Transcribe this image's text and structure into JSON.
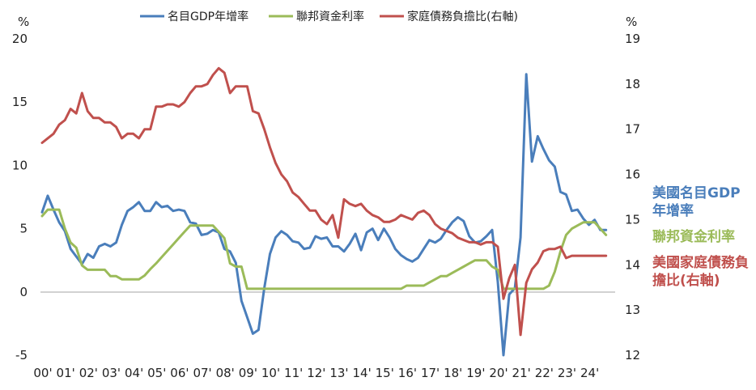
{
  "chart_data": {
    "type": "line",
    "left_axis": {
      "unit": "%",
      "min": -5,
      "max": 20,
      "ticks": [
        -5,
        0,
        5,
        10,
        15,
        20
      ]
    },
    "right_axis": {
      "unit": "%",
      "min": 12,
      "max": 19,
      "ticks": [
        12,
        13,
        14,
        15,
        16,
        17,
        18,
        19
      ]
    },
    "x_ticks": [
      "00'",
      "01'",
      "02'",
      "03'",
      "04'",
      "05'",
      "06'",
      "07'",
      "08'",
      "09'",
      "10'",
      "11'",
      "12'",
      "13'",
      "14'",
      "15'",
      "16'",
      "17'",
      "18'",
      "19'",
      "20'",
      "21'",
      "22'",
      "23'",
      "24'"
    ],
    "legend_position": "top",
    "grid": false,
    "series": [
      {
        "name": "名目GDP年增率",
        "side_label": "美國名目GDP年增率",
        "axis": "left",
        "color": "#4a7ebb",
        "x": [
          2000.0,
          2000.25,
          2000.5,
          2000.75,
          2001.0,
          2001.25,
          2001.5,
          2001.75,
          2002.0,
          2002.25,
          2002.5,
          2002.75,
          2003.0,
          2003.25,
          2003.5,
          2003.75,
          2004.0,
          2004.25,
          2004.5,
          2004.75,
          2005.0,
          2005.25,
          2005.5,
          2005.75,
          2006.0,
          2006.25,
          2006.5,
          2006.75,
          2007.0,
          2007.25,
          2007.5,
          2007.75,
          2008.0,
          2008.25,
          2008.5,
          2008.75,
          2009.0,
          2009.25,
          2009.5,
          2009.75,
          2010.0,
          2010.25,
          2010.5,
          2010.75,
          2011.0,
          2011.25,
          2011.5,
          2011.75,
          2012.0,
          2012.25,
          2012.5,
          2012.75,
          2013.0,
          2013.25,
          2013.5,
          2013.75,
          2014.0,
          2014.25,
          2014.5,
          2014.75,
          2015.0,
          2015.25,
          2015.5,
          2015.75,
          2016.0,
          2016.25,
          2016.5,
          2016.75,
          2017.0,
          2017.25,
          2017.5,
          2017.75,
          2018.0,
          2018.25,
          2018.5,
          2018.75,
          2019.0,
          2019.25,
          2019.5,
          2019.75,
          2020.0,
          2020.25,
          2020.5,
          2020.75,
          2021.0,
          2021.25,
          2021.5,
          2021.75,
          2022.0,
          2022.25,
          2022.5,
          2022.75,
          2023.0,
          2023.25,
          2023.5,
          2023.75,
          2024.0,
          2024.25,
          2024.5,
          2024.75
        ],
        "values": [
          6.3,
          7.6,
          6.5,
          5.5,
          4.8,
          3.4,
          2.8,
          2.2,
          3.0,
          2.7,
          3.6,
          3.8,
          3.6,
          3.9,
          5.3,
          6.4,
          6.7,
          7.1,
          6.4,
          6.4,
          7.1,
          6.7,
          6.8,
          6.4,
          6.5,
          6.4,
          5.5,
          5.4,
          4.5,
          4.6,
          4.9,
          4.7,
          3.4,
          3.2,
          2.3,
          -0.7,
          -2.0,
          -3.3,
          -3.0,
          0.3,
          3.0,
          4.3,
          4.8,
          4.5,
          4.0,
          3.9,
          3.4,
          3.5,
          4.4,
          4.2,
          4.3,
          3.6,
          3.6,
          3.2,
          3.8,
          4.6,
          3.3,
          4.7,
          5.0,
          4.1,
          5.0,
          4.3,
          3.4,
          2.9,
          2.6,
          2.4,
          2.7,
          3.4,
          4.1,
          3.9,
          4.2,
          4.9,
          5.5,
          5.9,
          5.6,
          4.4,
          3.9,
          4.0,
          4.4,
          4.9,
          0.8,
          -5.0,
          -0.2,
          0.3,
          4.3,
          17.2,
          10.3,
          12.3,
          11.3,
          10.4,
          9.9,
          7.9,
          7.7,
          6.4,
          6.5,
          5.8,
          5.3,
          5.7,
          4.9,
          4.9
        ]
      },
      {
        "name": "聯邦資金利率",
        "side_label": "聯邦資金利率",
        "axis": "left",
        "color": "#9bbb59",
        "x": [
          2000.0,
          2000.25,
          2000.5,
          2000.75,
          2001.0,
          2001.25,
          2001.5,
          2001.75,
          2002.0,
          2002.25,
          2002.5,
          2002.75,
          2003.0,
          2003.25,
          2003.5,
          2003.75,
          2004.0,
          2004.25,
          2004.5,
          2004.75,
          2005.0,
          2005.25,
          2005.5,
          2005.75,
          2006.0,
          2006.25,
          2006.5,
          2006.75,
          2007.0,
          2007.25,
          2007.5,
          2007.75,
          2008.0,
          2008.25,
          2008.5,
          2008.75,
          2009.0,
          2009.25,
          2009.5,
          2009.75,
          2010.0,
          2010.25,
          2010.5,
          2010.75,
          2011.0,
          2011.25,
          2011.5,
          2011.75,
          2012.0,
          2012.25,
          2012.5,
          2012.75,
          2013.0,
          2013.25,
          2013.5,
          2013.75,
          2014.0,
          2014.25,
          2014.5,
          2014.75,
          2015.0,
          2015.25,
          2015.5,
          2015.75,
          2016.0,
          2016.25,
          2016.5,
          2016.75,
          2017.0,
          2017.25,
          2017.5,
          2017.75,
          2018.0,
          2018.25,
          2018.5,
          2018.75,
          2019.0,
          2019.25,
          2019.5,
          2019.75,
          2020.0,
          2020.25,
          2020.5,
          2020.75,
          2021.0,
          2021.25,
          2021.5,
          2021.75,
          2022.0,
          2022.25,
          2022.5,
          2022.75,
          2023.0,
          2023.25,
          2023.5,
          2023.75,
          2024.0,
          2024.25,
          2024.5,
          2024.75
        ],
        "values": [
          6.0,
          6.5,
          6.5,
          6.5,
          5.0,
          3.9,
          3.5,
          2.1,
          1.75,
          1.75,
          1.75,
          1.75,
          1.25,
          1.25,
          1.0,
          1.0,
          1.0,
          1.0,
          1.3,
          1.8,
          2.25,
          2.75,
          3.25,
          3.75,
          4.25,
          4.75,
          5.25,
          5.25,
          5.25,
          5.25,
          5.25,
          4.75,
          4.25,
          2.25,
          2.0,
          2.0,
          0.25,
          0.25,
          0.25,
          0.25,
          0.25,
          0.25,
          0.25,
          0.25,
          0.25,
          0.25,
          0.25,
          0.25,
          0.25,
          0.25,
          0.25,
          0.25,
          0.25,
          0.25,
          0.25,
          0.25,
          0.25,
          0.25,
          0.25,
          0.25,
          0.25,
          0.25,
          0.25,
          0.25,
          0.5,
          0.5,
          0.5,
          0.5,
          0.75,
          1.0,
          1.25,
          1.25,
          1.5,
          1.75,
          2.0,
          2.25,
          2.5,
          2.5,
          2.5,
          2.0,
          1.75,
          0.25,
          0.25,
          0.25,
          0.25,
          0.25,
          0.25,
          0.25,
          0.25,
          0.5,
          1.6,
          3.2,
          4.5,
          5.0,
          5.25,
          5.5,
          5.5,
          5.5,
          5.0,
          4.5
        ]
      },
      {
        "name": "家庭債務負擔比(右軸)",
        "side_label": "美國家庭債務負擔比(右軸)",
        "axis": "right",
        "color": "#c0504d",
        "x": [
          2000.0,
          2000.25,
          2000.5,
          2000.75,
          2001.0,
          2001.25,
          2001.5,
          2001.75,
          2002.0,
          2002.25,
          2002.5,
          2002.75,
          2003.0,
          2003.25,
          2003.5,
          2003.75,
          2004.0,
          2004.25,
          2004.5,
          2004.75,
          2005.0,
          2005.25,
          2005.5,
          2005.75,
          2006.0,
          2006.25,
          2006.5,
          2006.75,
          2007.0,
          2007.25,
          2007.5,
          2007.75,
          2008.0,
          2008.25,
          2008.5,
          2008.75,
          2009.0,
          2009.25,
          2009.5,
          2009.75,
          2010.0,
          2010.25,
          2010.5,
          2010.75,
          2011.0,
          2011.25,
          2011.5,
          2011.75,
          2012.0,
          2012.25,
          2012.5,
          2012.75,
          2013.0,
          2013.25,
          2013.5,
          2013.75,
          2014.0,
          2014.25,
          2014.5,
          2014.75,
          2015.0,
          2015.25,
          2015.5,
          2015.75,
          2016.0,
          2016.25,
          2016.5,
          2016.75,
          2017.0,
          2017.25,
          2017.5,
          2017.75,
          2018.0,
          2018.25,
          2018.5,
          2018.75,
          2019.0,
          2019.25,
          2019.5,
          2019.75,
          2020.0,
          2020.25,
          2020.5,
          2020.75,
          2021.0,
          2021.25,
          2021.5,
          2021.75,
          2022.0,
          2022.25,
          2022.5,
          2022.75,
          2023.0,
          2023.25,
          2023.5,
          2023.75,
          2024.0,
          2024.25,
          2024.5,
          2024.75
        ],
        "values": [
          16.7,
          16.8,
          16.9,
          17.1,
          17.2,
          17.45,
          17.35,
          17.8,
          17.4,
          17.25,
          17.25,
          17.15,
          17.15,
          17.05,
          16.8,
          16.9,
          16.9,
          16.8,
          17.0,
          17.0,
          17.5,
          17.5,
          17.55,
          17.55,
          17.5,
          17.6,
          17.8,
          17.95,
          17.95,
          18.0,
          18.2,
          18.35,
          18.25,
          17.8,
          17.95,
          17.95,
          17.95,
          17.4,
          17.35,
          17.0,
          16.6,
          16.25,
          16.0,
          15.85,
          15.6,
          15.5,
          15.35,
          15.2,
          15.2,
          15.0,
          14.9,
          15.1,
          14.6,
          15.45,
          15.35,
          15.3,
          15.35,
          15.2,
          15.1,
          15.05,
          14.95,
          14.95,
          15.0,
          15.1,
          15.05,
          15.0,
          15.15,
          15.2,
          15.1,
          14.9,
          14.8,
          14.75,
          14.7,
          14.6,
          14.55,
          14.5,
          14.5,
          14.45,
          14.5,
          14.5,
          14.4,
          13.25,
          13.7,
          14.0,
          12.45,
          13.6,
          13.9,
          14.05,
          14.3,
          14.35,
          14.35,
          14.4,
          14.15,
          14.2,
          14.2,
          14.2,
          14.2,
          14.2,
          14.2,
          14.2
        ]
      }
    ]
  }
}
